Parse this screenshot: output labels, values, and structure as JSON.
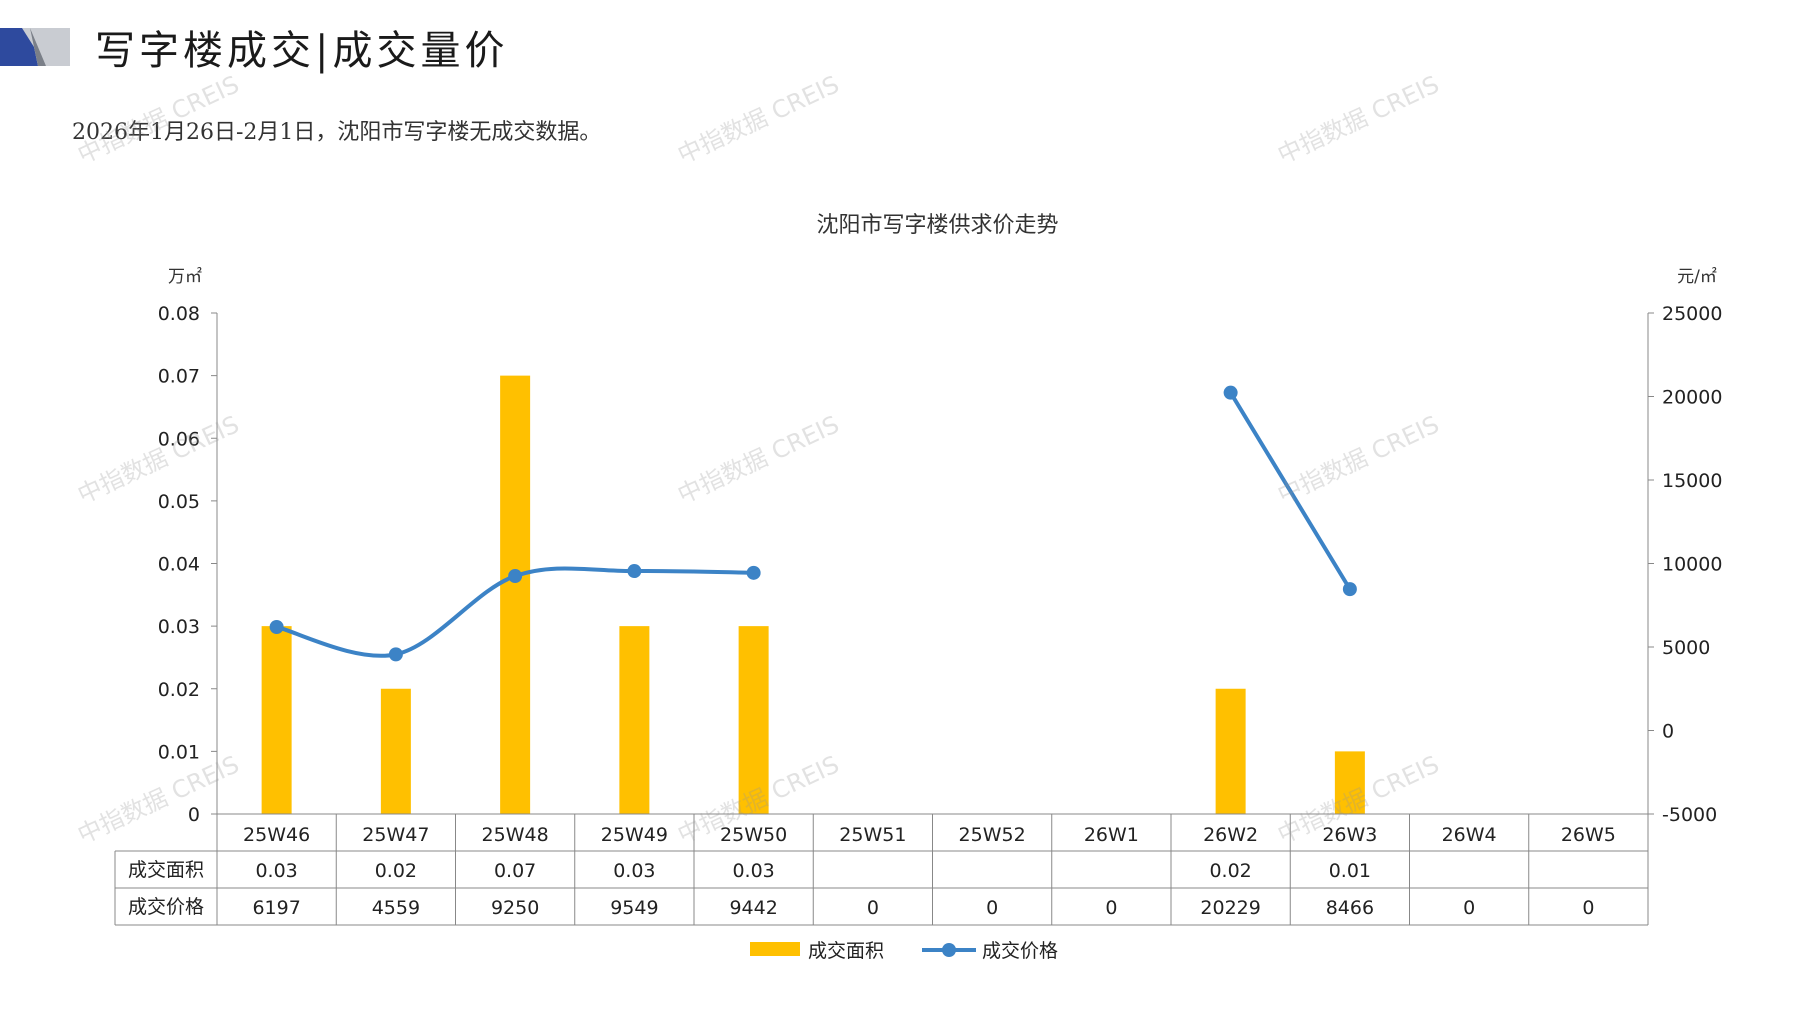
{
  "header": {
    "title": "写字楼成交|成交量价",
    "note": "2026年1月26日-2月1日，沈阳市写字楼无成交数据。"
  },
  "watermark": "中指数据 CREIS",
  "colors": {
    "bar": "#FFC000",
    "line": "#3C83C6",
    "accent_dark": "#2E4A9E",
    "accent_grey": "#9AA0AA"
  },
  "chart_data": {
    "type": "bar",
    "title": "沈阳市写字楼供求价走势",
    "categories": [
      "25W46",
      "25W47",
      "25W48",
      "25W49",
      "25W50",
      "25W51",
      "25W52",
      "26W1",
      "26W2",
      "26W3",
      "26W4",
      "26W5"
    ],
    "y_left_unit": "万㎡",
    "y_right_unit": "元/㎡",
    "y_left_ticks": [
      "0",
      "0.01",
      "0.02",
      "0.03",
      "0.04",
      "0.05",
      "0.06",
      "0.07",
      "0.08"
    ],
    "y_right_ticks": [
      "-5000",
      "0",
      "5000",
      "10000",
      "15000",
      "20000",
      "25000"
    ],
    "ylim_left": [
      0,
      0.08
    ],
    "ylim_right": [
      -5000,
      25000
    ],
    "series": [
      {
        "name": "成交面积",
        "type": "bar",
        "axis": "left",
        "values": [
          0.03,
          0.02,
          0.07,
          0.03,
          0.03,
          null,
          null,
          null,
          0.02,
          0.01,
          null,
          null
        ],
        "labels": [
          "0.03",
          "0.02",
          "0.07",
          "0.03",
          "0.03",
          "",
          "",
          "",
          "0.02",
          "0.01",
          "",
          ""
        ]
      },
      {
        "name": "成交价格",
        "type": "line",
        "axis": "right",
        "values": [
          6197,
          4559,
          9250,
          9549,
          9442,
          0,
          0,
          0,
          20229,
          8466,
          0,
          0
        ],
        "labels": [
          "6197",
          "4559",
          "9250",
          "9549",
          "9442",
          "0",
          "0",
          "0",
          "20229",
          "8466",
          "0",
          "0"
        ]
      }
    ],
    "legend": {
      "position": "bottom-center"
    }
  }
}
